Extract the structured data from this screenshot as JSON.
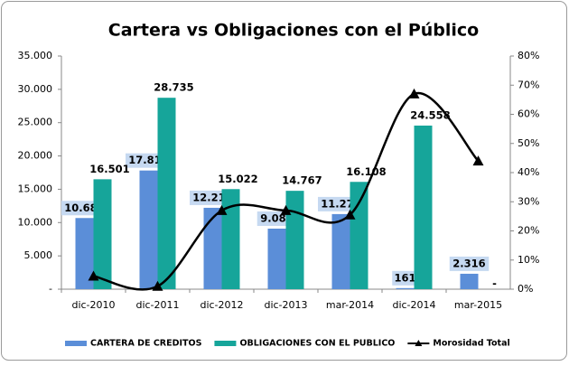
{
  "chart_data": {
    "type": "bar",
    "title": "Cartera vs Obligaciones con el Público",
    "categories": [
      "dic-2010",
      "dic-2011",
      "dic-2012",
      "dic-2013",
      "mar-2014",
      "dic-2014",
      "mar-2015"
    ],
    "series": [
      {
        "name": "CARTERA DE CREDITOS",
        "color": "#5b8ed8",
        "values": [
          10682,
          17815,
          12217,
          9089,
          11274,
          161,
          2316
        ],
        "value_labels": [
          "10.682",
          "17.815",
          "12.217",
          "9.089",
          "11.274",
          "161",
          "2.316"
        ]
      },
      {
        "name": "OBLIGACIONES CON EL PUBLICO",
        "color": "#16a59a",
        "values": [
          16501,
          28735,
          15022,
          14767,
          16108,
          24558,
          0
        ],
        "value_labels": [
          "16.501",
          "28.735",
          "15.022",
          "14.767",
          "16.108",
          "24.558",
          "-"
        ]
      },
      {
        "name": "Morosidad Total",
        "color": "#000000",
        "type": "line",
        "axis": "y2",
        "values": [
          4.5,
          1,
          27,
          27,
          25.5,
          67,
          44
        ]
      }
    ],
    "ylim": [
      0,
      35000
    ],
    "yticks": [
      {
        "value": 0,
        "label": "-"
      },
      {
        "value": 5000,
        "label": "5.000"
      },
      {
        "value": 10000,
        "label": "10.000"
      },
      {
        "value": 15000,
        "label": "15.000"
      },
      {
        "value": 20000,
        "label": "20.000"
      },
      {
        "value": 25000,
        "label": "25.000"
      },
      {
        "value": 30000,
        "label": "30.000"
      },
      {
        "value": 35000,
        "label": "35.000"
      }
    ],
    "y2lim": [
      0,
      80
    ],
    "y2ticks": [
      {
        "value": 0,
        "label": "0%"
      },
      {
        "value": 10,
        "label": "10%"
      },
      {
        "value": 20,
        "label": "20%"
      },
      {
        "value": 30,
        "label": "30%"
      },
      {
        "value": 40,
        "label": "40%"
      },
      {
        "value": 50,
        "label": "50%"
      },
      {
        "value": 60,
        "label": "60%"
      },
      {
        "value": 70,
        "label": "70%"
      },
      {
        "value": 80,
        "label": "80%"
      }
    ],
    "grid": false,
    "legend": "bottom"
  }
}
